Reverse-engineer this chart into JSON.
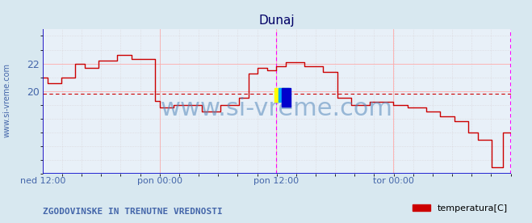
{
  "title": "Dunaj",
  "bg_color": "#d8e8f0",
  "plot_bg_color": "#e8f0f8",
  "line_color": "#cc0000",
  "grid_color_major": "#ffaaaa",
  "grid_color_minor": "#ddcccc",
  "ref_line_value": 19.8,
  "ref_line_color": "#cc0000",
  "xlabel_color": "#4466aa",
  "ylabel_color": "#4466aa",
  "title_color": "#000066",
  "watermark": "www.si-vreme.com",
  "watermark_color": "#5588bb",
  "left_label": "www.si-vreme.com",
  "bottom_label": "ZGODOVINSKE IN TRENUTNE VREDNOSTI",
  "legend_label": "temperatura[C]",
  "legend_color": "#cc0000",
  "x_tick_labels": [
    "ned 12:00",
    "pon 00:00",
    "pon 12:00",
    "tor 00:00"
  ],
  "x_tick_positions": [
    0.0,
    0.25,
    0.5,
    0.75
  ],
  "ylim": [
    14,
    24.5
  ],
  "yticks": [
    20,
    22
  ],
  "magenta_lines": [
    0.5,
    1.0
  ],
  "axis_color": "#0000cc",
  "data_x": [
    0.0,
    0.01,
    0.01,
    0.04,
    0.04,
    0.07,
    0.07,
    0.09,
    0.09,
    0.12,
    0.12,
    0.16,
    0.16,
    0.19,
    0.19,
    0.24,
    0.24,
    0.25,
    0.25,
    0.28,
    0.28,
    0.34,
    0.34,
    0.38,
    0.38,
    0.42,
    0.42,
    0.44,
    0.44,
    0.46,
    0.46,
    0.48,
    0.48,
    0.5,
    0.5,
    0.52,
    0.52,
    0.56,
    0.56,
    0.6,
    0.6,
    0.63,
    0.63,
    0.66,
    0.66,
    0.7,
    0.7,
    0.75,
    0.75,
    0.78,
    0.78,
    0.82,
    0.82,
    0.85,
    0.85,
    0.88,
    0.88,
    0.91,
    0.91,
    0.93,
    0.93,
    0.96,
    0.96,
    0.985,
    0.985,
    1.0
  ],
  "data_y": [
    21.0,
    21.0,
    20.6,
    20.6,
    21.0,
    21.0,
    22.0,
    22.0,
    21.7,
    21.7,
    22.2,
    22.2,
    22.6,
    22.6,
    22.3,
    22.3,
    19.3,
    19.3,
    18.8,
    18.8,
    19.0,
    19.0,
    18.5,
    18.5,
    19.0,
    19.0,
    19.5,
    19.5,
    21.3,
    21.3,
    21.7,
    21.7,
    21.5,
    21.5,
    21.8,
    21.8,
    22.1,
    22.1,
    21.8,
    21.8,
    21.4,
    21.4,
    19.5,
    19.5,
    19.0,
    19.0,
    19.2,
    19.2,
    19.0,
    19.0,
    18.8,
    18.8,
    18.5,
    18.5,
    18.2,
    18.2,
    17.8,
    17.8,
    17.0,
    17.0,
    16.5,
    16.5,
    14.5,
    14.5,
    17.0,
    17.0
  ]
}
